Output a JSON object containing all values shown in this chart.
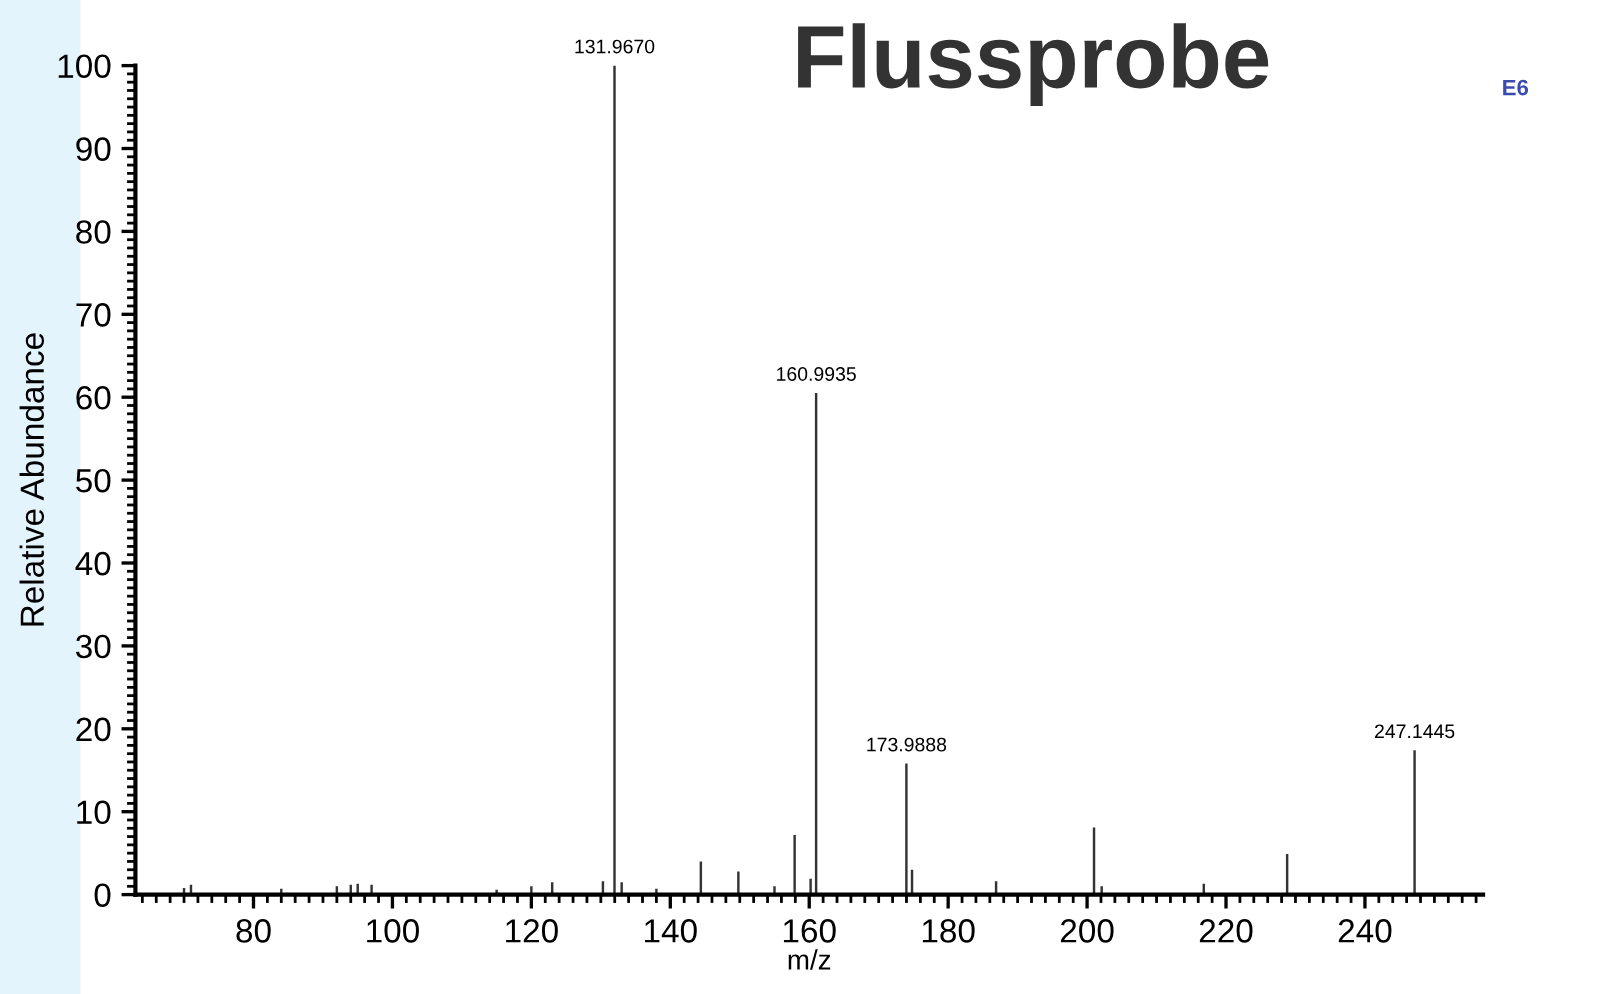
{
  "chart_data": {
    "type": "bar",
    "title": "Flussprobe",
    "xlabel": "m/z",
    "ylabel": "Relative Abundance",
    "x": [
      70,
      71,
      84,
      92,
      94,
      95,
      97,
      115,
      120,
      123,
      130.3,
      131.967,
      133,
      138,
      144.4,
      149.8,
      155,
      157.9,
      160.2,
      160.9935,
      173.9888,
      174.8,
      186.9,
      201,
      202.1,
      216.8,
      228.8,
      247.1445
    ],
    "values": [
      0.8,
      1.2,
      0.7,
      1.0,
      1.2,
      1.3,
      1.2,
      0.6,
      1.0,
      1.5,
      1.6,
      100,
      1.5,
      0.7,
      4.0,
      2.8,
      1.0,
      7.2,
      1.9,
      60.5,
      15.8,
      3.0,
      1.6,
      8.1,
      1.0,
      1.3,
      4.9,
      17.4
    ],
    "color": "#333333",
    "annotations": [
      {
        "text": "131.9670",
        "x": 131.967,
        "y": 100
      },
      {
        "text": "160.9935",
        "x": 160.9935,
        "y": 60.5
      },
      {
        "text": "173.9888",
        "x": 173.9888,
        "y": 15.8
      },
      {
        "text": "247.1445",
        "x": 247.1445,
        "y": 17.4
      },
      "E6"
    ],
    "xlim": [
      63,
      257
    ],
    "ylim": [
      0,
      100
    ],
    "xticks": [
      80,
      100,
      120,
      140,
      160,
      180,
      200,
      220,
      240
    ],
    "yticks": [
      0,
      10,
      20,
      30,
      40,
      50,
      60,
      70,
      80,
      90,
      100
    ],
    "grid": false,
    "legend": false
  }
}
